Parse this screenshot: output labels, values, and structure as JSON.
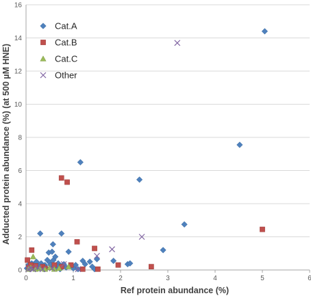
{
  "chart_data": {
    "type": "scatter",
    "title": "",
    "xlabel": "Ref protein abundance (%)",
    "ylabel": "Adducted protein abundance (%) (at 500 µM HNE)",
    "xlim": [
      0,
      6
    ],
    "ylim": [
      0,
      16
    ],
    "x_ticks": [
      "0",
      "1",
      "2",
      "3",
      "4",
      "5",
      "6"
    ],
    "y_ticks": [
      "0",
      "2",
      "4",
      "6",
      "8",
      "10",
      "12",
      "14",
      "16"
    ],
    "grid": "horizontal",
    "legend_position": "top-left",
    "series": [
      {
        "name": "Cat.A",
        "marker": "diamond",
        "color": "#4F81BD",
        "points": [
          [
            0.02,
            0.1
          ],
          [
            0.05,
            0.3
          ],
          [
            0.08,
            0.05
          ],
          [
            0.1,
            0.2
          ],
          [
            0.12,
            0.4
          ],
          [
            0.15,
            0.15
          ],
          [
            0.18,
            0.35
          ],
          [
            0.2,
            0.05
          ],
          [
            0.22,
            0.5
          ],
          [
            0.25,
            0.25
          ],
          [
            0.28,
            0.1
          ],
          [
            0.3,
            2.2
          ],
          [
            0.32,
            0.4
          ],
          [
            0.35,
            0.2
          ],
          [
            0.38,
            0.05
          ],
          [
            0.4,
            0.3
          ],
          [
            0.42,
            0.15
          ],
          [
            0.45,
            0.6
          ],
          [
            0.48,
            1.05
          ],
          [
            0.5,
            0.45
          ],
          [
            0.52,
            0.3
          ],
          [
            0.55,
            1.1
          ],
          [
            0.57,
            1.55
          ],
          [
            0.58,
            0.6
          ],
          [
            0.6,
            0.2
          ],
          [
            0.62,
            0.8
          ],
          [
            0.65,
            0.1
          ],
          [
            0.68,
            0.4
          ],
          [
            0.7,
            0.25
          ],
          [
            0.72,
            0.05
          ],
          [
            0.75,
            2.2
          ],
          [
            0.78,
            0.3
          ],
          [
            0.8,
            0.35
          ],
          [
            0.85,
            0.15
          ],
          [
            0.9,
            1.1
          ],
          [
            0.95,
            0.25
          ],
          [
            1.0,
            0.1
          ],
          [
            1.05,
            0.3
          ],
          [
            1.1,
            0.05
          ],
          [
            1.15,
            6.5
          ],
          [
            1.2,
            0.55
          ],
          [
            1.25,
            0.35
          ],
          [
            1.35,
            0.5
          ],
          [
            1.4,
            0.2
          ],
          [
            1.45,
            0.05
          ],
          [
            1.5,
            0.65
          ],
          [
            1.85,
            0.55
          ],
          [
            2.15,
            0.35
          ],
          [
            2.2,
            0.4
          ],
          [
            2.4,
            5.45
          ],
          [
            2.9,
            1.2
          ],
          [
            3.35,
            2.75
          ],
          [
            4.52,
            7.55
          ],
          [
            5.05,
            14.4
          ]
        ]
      },
      {
        "name": "Cat.B",
        "marker": "square",
        "color": "#C0504D",
        "points": [
          [
            0.03,
            0.6
          ],
          [
            0.06,
            0.15
          ],
          [
            0.1,
            0.3
          ],
          [
            0.12,
            1.2
          ],
          [
            0.2,
            0.25
          ],
          [
            0.35,
            0.2
          ],
          [
            0.4,
            0.1
          ],
          [
            0.6,
            0.3
          ],
          [
            0.75,
            0.2
          ],
          [
            0.75,
            5.55
          ],
          [
            0.87,
            5.3
          ],
          [
            0.95,
            0.3
          ],
          [
            1.08,
            1.7
          ],
          [
            1.2,
            0.05
          ],
          [
            1.45,
            1.3
          ],
          [
            1.52,
            0.05
          ],
          [
            1.95,
            0.3
          ],
          [
            2.65,
            0.2
          ],
          [
            5.0,
            2.45
          ]
        ]
      },
      {
        "name": "Cat.C",
        "marker": "triangle",
        "color": "#9BBB59",
        "points": [
          [
            0.05,
            0.05
          ],
          [
            0.1,
            0.15
          ],
          [
            0.15,
            0.8
          ],
          [
            0.2,
            0.05
          ],
          [
            0.3,
            0.1
          ],
          [
            0.4,
            0.05
          ],
          [
            0.5,
            0.15
          ],
          [
            0.6,
            0.05
          ],
          [
            0.7,
            0.1
          ],
          [
            0.9,
            0.2
          ]
        ]
      },
      {
        "name": "Other",
        "marker": "x",
        "color": "#8064A2",
        "points": [
          [
            0.05,
            0.05
          ],
          [
            0.1,
            0.1
          ],
          [
            0.15,
            0.05
          ],
          [
            0.25,
            0.15
          ],
          [
            0.35,
            0.05
          ],
          [
            0.55,
            0.1
          ],
          [
            0.8,
            0.35
          ],
          [
            1.1,
            0.05
          ],
          [
            1.5,
            0.85
          ],
          [
            1.82,
            1.25
          ],
          [
            2.45,
            2.0
          ],
          [
            3.2,
            13.7
          ]
        ]
      }
    ]
  }
}
